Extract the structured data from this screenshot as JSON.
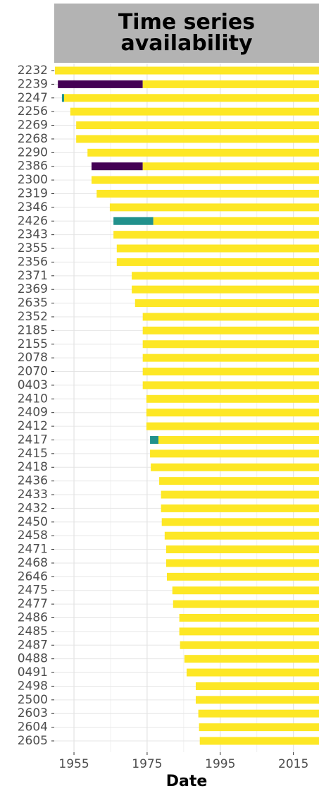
{
  "chart_data": {
    "type": "timeline",
    "title": "Time series availability",
    "x_label": "Date",
    "xlim": [
      1949.6,
      2022
    ],
    "xticks": [
      1955,
      1975,
      1995,
      2015
    ],
    "grid": true,
    "categories": [
      "2232",
      "2239",
      "2247",
      "2256",
      "2269",
      "2268",
      "2290",
      "2386",
      "2300",
      "2319",
      "2346",
      "2426",
      "2343",
      "2355",
      "2356",
      "2371",
      "2369",
      "2635",
      "2352",
      "2185",
      "2155",
      "2078",
      "2070",
      "0403",
      "2410",
      "2409",
      "2412",
      "2417",
      "2415",
      "2418",
      "2436",
      "2433",
      "2432",
      "2450",
      "2458",
      "2471",
      "2468",
      "2646",
      "2475",
      "2477",
      "2486",
      "2485",
      "2487",
      "0488",
      "0491",
      "2498",
      "2500",
      "2603",
      "2604",
      "2605"
    ],
    "segments": [
      [
        {
          "start": 1949.8,
          "end": 2022,
          "color": "#fde725"
        }
      ],
      [
        {
          "start": 1950.6,
          "end": 1973.8,
          "color": "#440154"
        },
        {
          "start": 1973.8,
          "end": 2022,
          "color": "#fde725"
        }
      ],
      [
        {
          "start": 1951.7,
          "end": 1952.3,
          "color": "#21918c"
        },
        {
          "start": 1952.3,
          "end": 2022,
          "color": "#fde725"
        }
      ],
      [
        {
          "start": 1954.0,
          "end": 2022,
          "color": "#fde725"
        }
      ],
      [
        {
          "start": 1955.6,
          "end": 2022,
          "color": "#fde725"
        }
      ],
      [
        {
          "start": 1955.6,
          "end": 2022,
          "color": "#fde725"
        }
      ],
      [
        {
          "start": 1958.7,
          "end": 2022,
          "color": "#fde725"
        }
      ],
      [
        {
          "start": 1959.8,
          "end": 1973.8,
          "color": "#440154"
        },
        {
          "start": 1973.8,
          "end": 2022,
          "color": "#fde725"
        }
      ],
      [
        {
          "start": 1959.8,
          "end": 2022,
          "color": "#fde725"
        }
      ],
      [
        {
          "start": 1961.2,
          "end": 2022,
          "color": "#fde725"
        }
      ],
      [
        {
          "start": 1964.8,
          "end": 2022,
          "color": "#fde725"
        }
      ],
      [
        {
          "start": 1965.8,
          "end": 1976.7,
          "color": "#21918c"
        },
        {
          "start": 1976.7,
          "end": 2022,
          "color": "#fde725"
        }
      ],
      [
        {
          "start": 1965.8,
          "end": 2022,
          "color": "#fde725"
        }
      ],
      [
        {
          "start": 1966.7,
          "end": 2022,
          "color": "#fde725"
        }
      ],
      [
        {
          "start": 1966.7,
          "end": 2022,
          "color": "#fde725"
        }
      ],
      [
        {
          "start": 1970.8,
          "end": 2022,
          "color": "#fde725"
        }
      ],
      [
        {
          "start": 1970.8,
          "end": 2022,
          "color": "#fde725"
        }
      ],
      [
        {
          "start": 1971.7,
          "end": 2022,
          "color": "#fde725"
        }
      ],
      [
        {
          "start": 1973.8,
          "end": 2022,
          "color": "#fde725"
        }
      ],
      [
        {
          "start": 1973.8,
          "end": 2022,
          "color": "#fde725"
        }
      ],
      [
        {
          "start": 1973.8,
          "end": 2022,
          "color": "#fde725"
        }
      ],
      [
        {
          "start": 1973.8,
          "end": 2022,
          "color": "#fde725"
        }
      ],
      [
        {
          "start": 1973.8,
          "end": 2022,
          "color": "#fde725"
        }
      ],
      [
        {
          "start": 1973.8,
          "end": 2022,
          "color": "#fde725"
        }
      ],
      [
        {
          "start": 1974.8,
          "end": 2022,
          "color": "#fde725"
        }
      ],
      [
        {
          "start": 1974.8,
          "end": 2022,
          "color": "#fde725"
        }
      ],
      [
        {
          "start": 1974.8,
          "end": 2022,
          "color": "#fde725"
        }
      ],
      [
        {
          "start": 1975.8,
          "end": 1978.1,
          "color": "#21918c"
        },
        {
          "start": 1978.1,
          "end": 2022,
          "color": "#fde725"
        }
      ],
      [
        {
          "start": 1975.8,
          "end": 2022,
          "color": "#fde725"
        }
      ],
      [
        {
          "start": 1976.0,
          "end": 2022,
          "color": "#fde725"
        }
      ],
      [
        {
          "start": 1978.3,
          "end": 2022,
          "color": "#fde725"
        }
      ],
      [
        {
          "start": 1978.8,
          "end": 2022,
          "color": "#fde725"
        }
      ],
      [
        {
          "start": 1978.8,
          "end": 2022,
          "color": "#fde725"
        }
      ],
      [
        {
          "start": 1979.0,
          "end": 2022,
          "color": "#fde725"
        }
      ],
      [
        {
          "start": 1979.8,
          "end": 2022,
          "color": "#fde725"
        }
      ],
      [
        {
          "start": 1980.2,
          "end": 2022,
          "color": "#fde725"
        }
      ],
      [
        {
          "start": 1980.2,
          "end": 2022,
          "color": "#fde725"
        }
      ],
      [
        {
          "start": 1980.4,
          "end": 2022,
          "color": "#fde725"
        }
      ],
      [
        {
          "start": 1981.9,
          "end": 2022,
          "color": "#fde725"
        }
      ],
      [
        {
          "start": 1982.1,
          "end": 2022,
          "color": "#fde725"
        }
      ],
      [
        {
          "start": 1983.8,
          "end": 2022,
          "color": "#fde725"
        }
      ],
      [
        {
          "start": 1983.8,
          "end": 2022,
          "color": "#fde725"
        }
      ],
      [
        {
          "start": 1984.0,
          "end": 2022,
          "color": "#fde725"
        }
      ],
      [
        {
          "start": 1985.2,
          "end": 2022,
          "color": "#fde725"
        }
      ],
      [
        {
          "start": 1985.8,
          "end": 2022,
          "color": "#fde725"
        }
      ],
      [
        {
          "start": 1988.3,
          "end": 2022,
          "color": "#fde725"
        }
      ],
      [
        {
          "start": 1988.3,
          "end": 2022,
          "color": "#fde725"
        }
      ],
      [
        {
          "start": 1989.0,
          "end": 2022,
          "color": "#fde725"
        }
      ],
      [
        {
          "start": 1989.2,
          "end": 2022,
          "color": "#fde725"
        }
      ],
      [
        {
          "start": 1989.4,
          "end": 2022,
          "color": "#fde725"
        }
      ]
    ]
  }
}
